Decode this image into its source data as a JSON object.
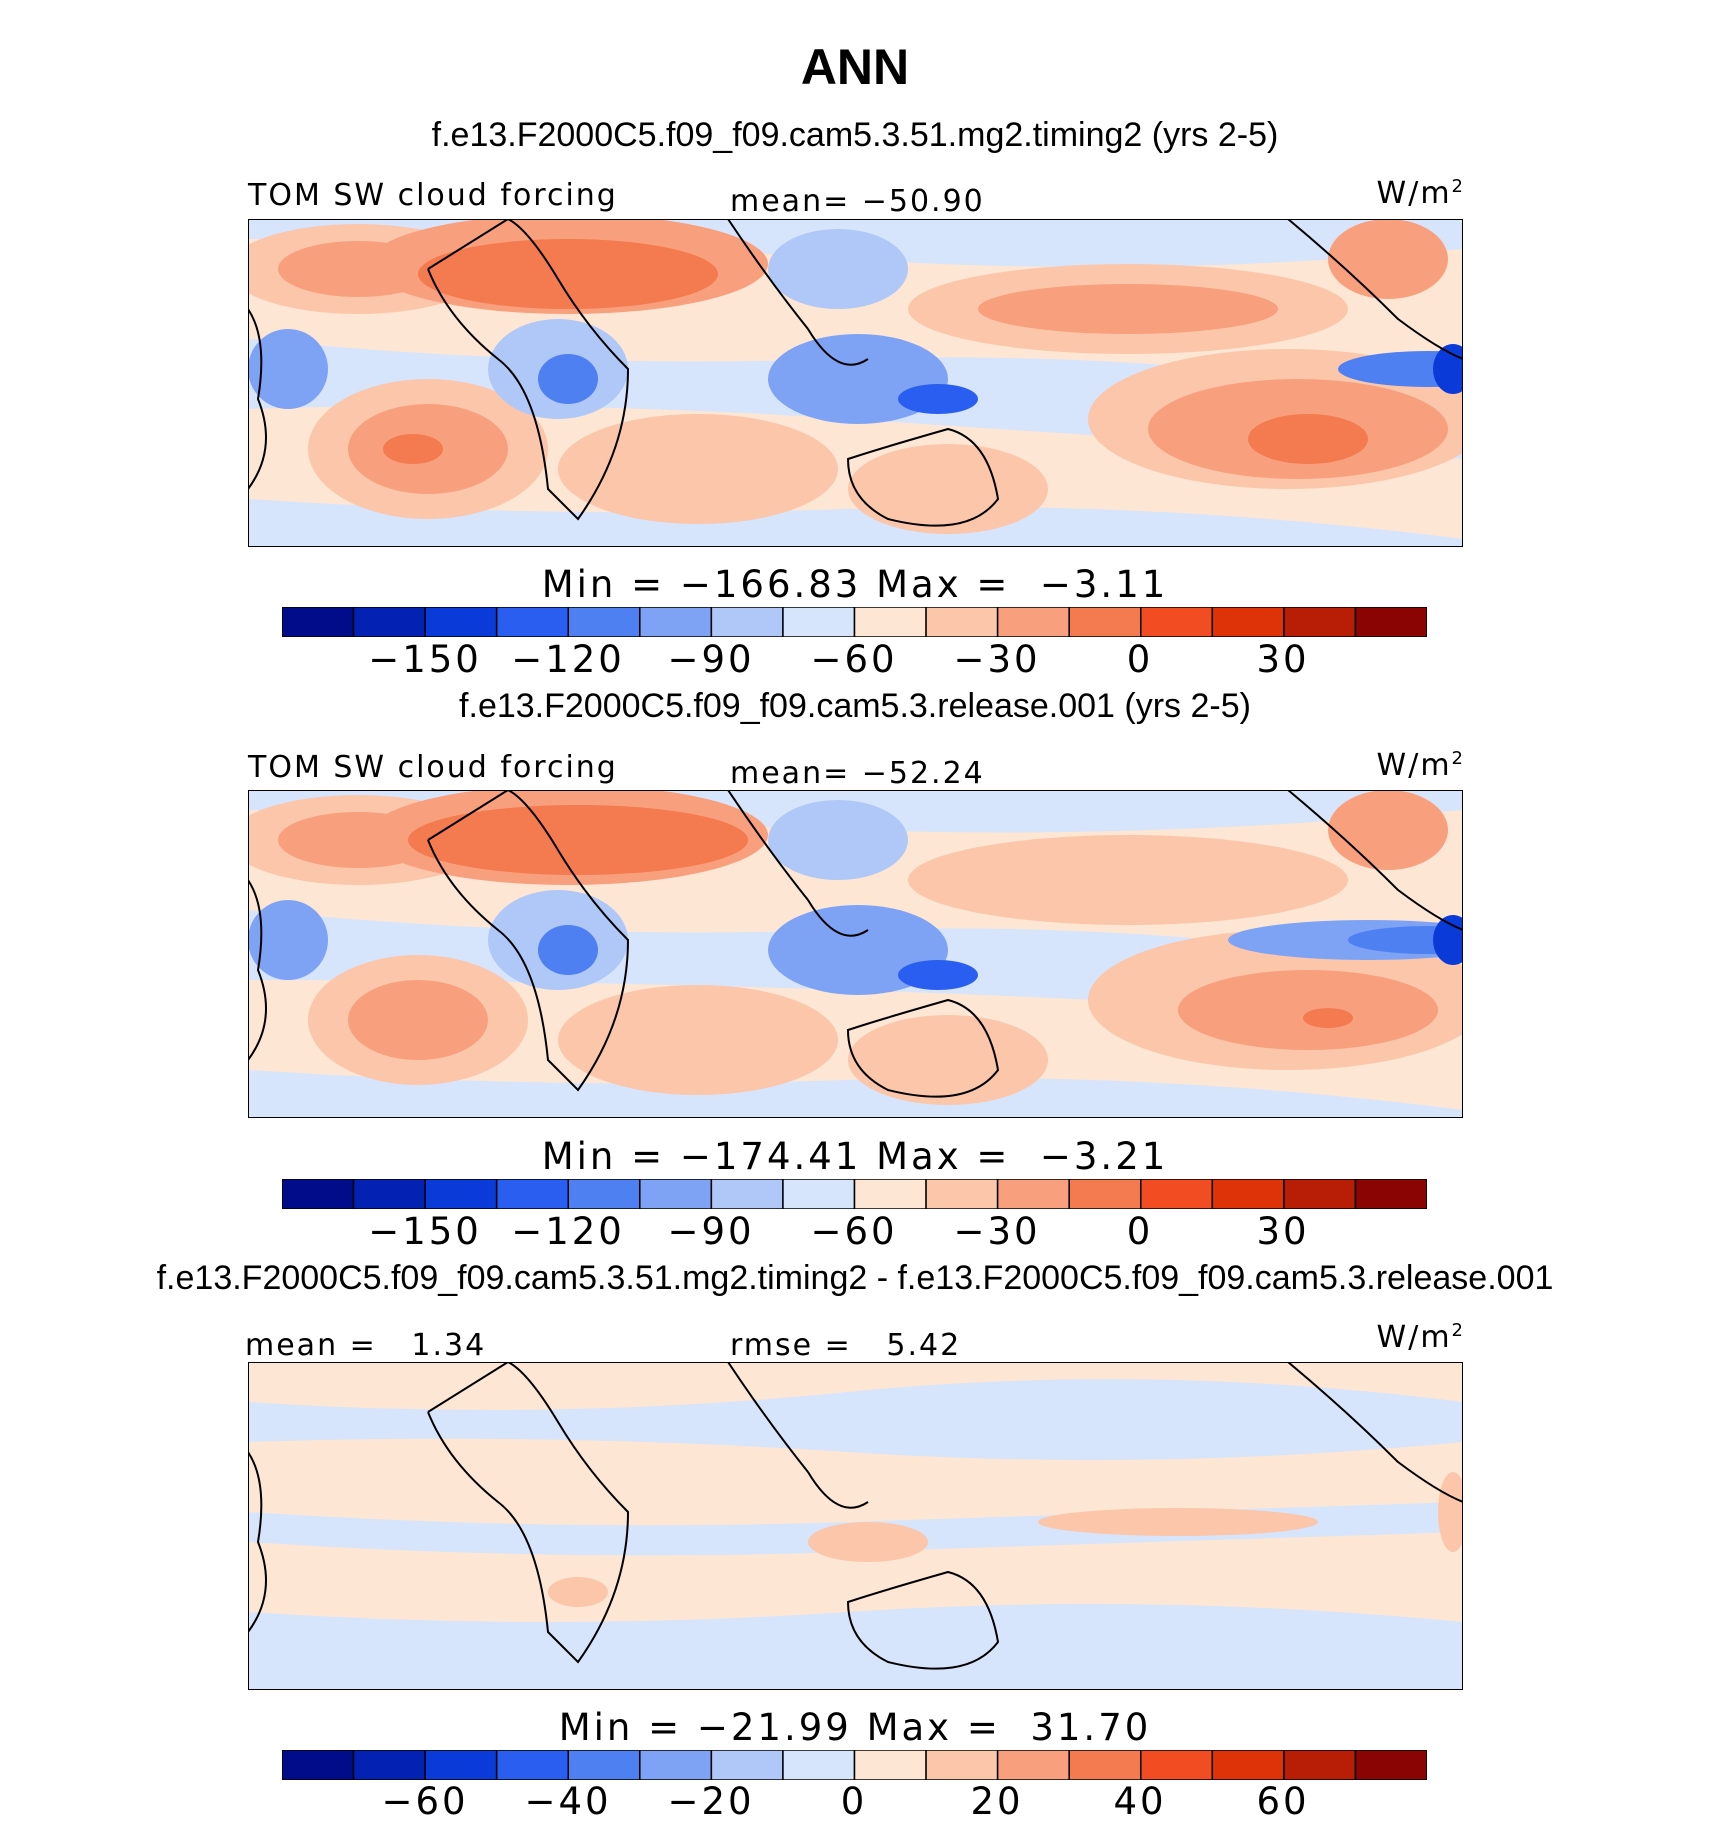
{
  "main_title": "ANN",
  "panels": [
    {
      "case_title": "f.e13.F2000C5.f09_f09.cam5.3.51.mg2.timing2 (yrs 2-5)",
      "left_label": "TOM SW cloud forcing",
      "center_label": "mean= −50.90",
      "units": "W/m",
      "units_exp": "2",
      "stats": "Min = −166.83 Max =  −3.11",
      "colorbar_ticks": [
        "−150",
        "−120",
        "−90",
        "−60",
        "−30",
        "0",
        "30"
      ]
    },
    {
      "case_title": "f.e13.F2000C5.f09_f09.cam5.3.release.001 (yrs 2-5)",
      "left_label": "TOM SW cloud forcing",
      "center_label": "mean= −52.24",
      "units": "W/m",
      "units_exp": "2",
      "stats": "Min = −174.41 Max =  −3.21",
      "colorbar_ticks": [
        "−150",
        "−120",
        "−90",
        "−60",
        "−30",
        "0",
        "30"
      ]
    },
    {
      "case_title": "f.e13.F2000C5.f09_f09.cam5.3.51.mg2.timing2 - f.e13.F2000C5.f09_f09.cam5.3.release.001",
      "left_label": "mean =   1.34",
      "center_label": "rmse =   5.42",
      "units": "W/m",
      "units_exp": "2",
      "stats": "Min = −21.99 Max =  31.70",
      "colorbar_ticks": [
        "−60",
        "−40",
        "−20",
        "0",
        "20",
        "40",
        "60"
      ]
    }
  ],
  "colormap": [
    "#000c8a",
    "#0322b4",
    "#0a3ad8",
    "#2a5ef0",
    "#4f80f2",
    "#7ea3f4",
    "#b0c8f7",
    "#d6e5fb",
    "#fde6d3",
    "#fbc6aa",
    "#f8a07d",
    "#f47a4f",
    "#f24c22",
    "#de3208",
    "#b81d05",
    "#8a0404"
  ],
  "land_color": "#d0dcf2"
}
